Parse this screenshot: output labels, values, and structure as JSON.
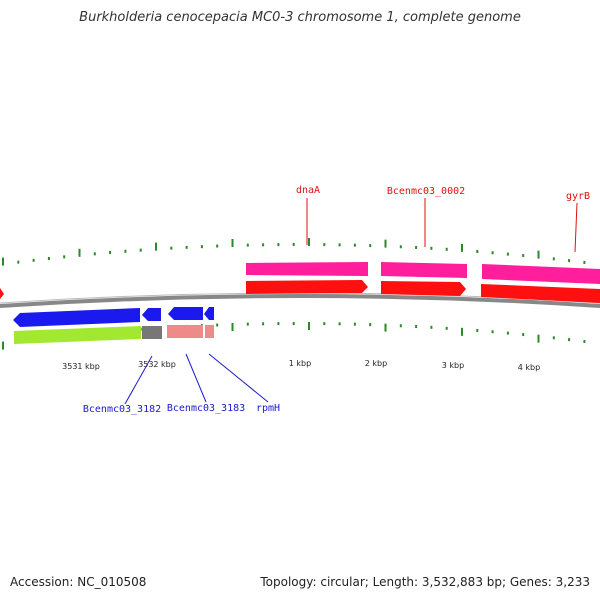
{
  "title": "Burkholderia cenocepacia MC0-3 chromosome 1, complete genome",
  "footer": {
    "accession": "Accession: NC_010508",
    "summary": "Topology: circular; Length: 3,532,883 bp; Genes: 3,233"
  },
  "colors": {
    "forward_gene": "#ff1e9b",
    "forward_cds": "#ff1010",
    "reverse_cds": "#1a1aee",
    "reverse_gene_a": "#a2e830",
    "reverse_gene_b": "#777777",
    "reverse_gene_c": "#ee8a8a",
    "backbone": "#888888",
    "ticks": "#2a8a2a",
    "forward_label": "#dd1111",
    "reverse_label": "#1a1acc"
  },
  "scale_labels": [
    "3531 kbp",
    "3532 kbp",
    "1 kbp",
    "2 kbp",
    "3 kbp",
    "4 kbp"
  ],
  "forward_labels": [
    "dnaA",
    "Bcenmc03_0002",
    "gyrB"
  ],
  "reverse_labels": [
    "Bcenmc03_3182",
    "Bcenmc03_3183",
    "rpmH"
  ]
}
